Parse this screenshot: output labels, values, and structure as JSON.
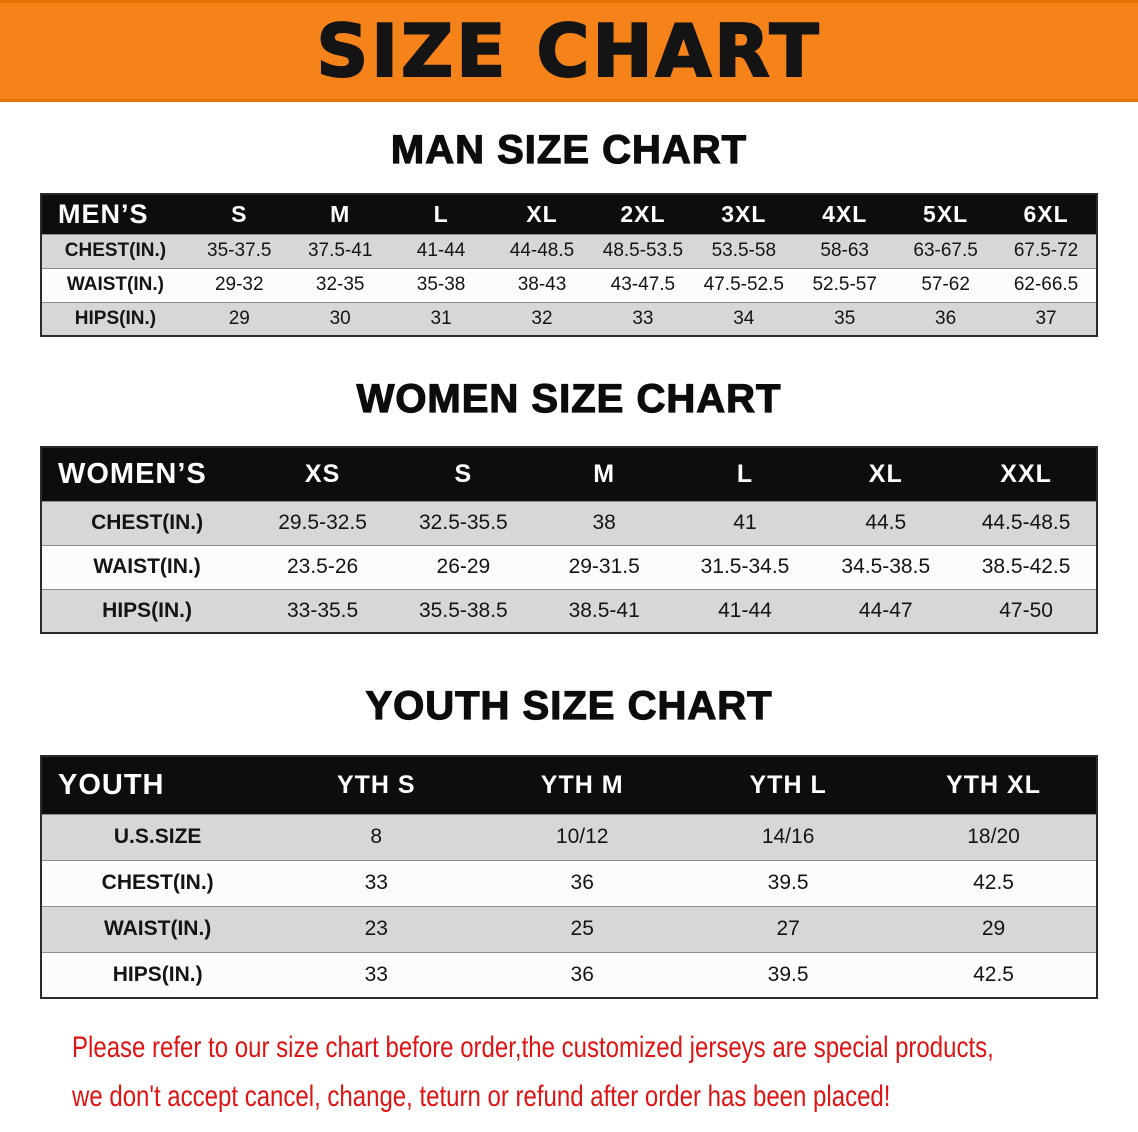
{
  "banner": {
    "title": "SIZE CHART"
  },
  "colors": {
    "banner_bg": "#f6831a",
    "title_text": "#141414",
    "table_header_bg": "#0d0d0d",
    "table_header_text": "#ffffff",
    "row_stripe": "#d7d7d7",
    "disclaimer_text": "#df1414"
  },
  "sections": [
    {
      "id": "men",
      "heading": "MAN SIZE CHART",
      "table": {
        "header": [
          "MEN’S",
          "S",
          "M",
          "L",
          "XL",
          "2XL",
          "3XL",
          "4XL",
          "5XL",
          "6XL"
        ],
        "rows": [
          {
            "label": "CHEST(IN.)",
            "values": [
              "35-37.5",
              "37.5-41",
              "41-44",
              "44-48.5",
              "48.5-53.5",
              "53.5-58",
              "58-63",
              "63-67.5",
              "67.5-72"
            ]
          },
          {
            "label": "WAIST(IN.)",
            "values": [
              "29-32",
              "32-35",
              "35-38",
              "38-43",
              "43-47.5",
              "47.5-52.5",
              "52.5-57",
              "57-62",
              "62-66.5"
            ]
          },
          {
            "label": "HIPS(IN.)",
            "values": [
              "29",
              "30",
              "31",
              "32",
              "33",
              "34",
              "35",
              "36",
              "37"
            ]
          }
        ]
      }
    },
    {
      "id": "women",
      "heading": "WOMEN SIZE CHART",
      "table": {
        "header": [
          "WOMEN’S",
          "XS",
          "S",
          "M",
          "L",
          "XL",
          "XXL"
        ],
        "rows": [
          {
            "label": "CHEST(IN.)",
            "values": [
              "29.5-32.5",
              "32.5-35.5",
              "38",
              "41",
              "44.5",
              "44.5-48.5"
            ]
          },
          {
            "label": "WAIST(IN.)",
            "values": [
              "23.5-26",
              "26-29",
              "29-31.5",
              "31.5-34.5",
              "34.5-38.5",
              "38.5-42.5"
            ]
          },
          {
            "label": "HIPS(IN.)",
            "values": [
              "33-35.5",
              "35.5-38.5",
              "38.5-41",
              "41-44",
              "44-47",
              "47-50"
            ]
          }
        ]
      }
    },
    {
      "id": "youth",
      "heading": "YOUTH SIZE CHART",
      "table": {
        "header": [
          "YOUTH",
          "YTH S",
          "YTH M",
          "YTH L",
          "YTH XL"
        ],
        "rows": [
          {
            "label": "U.S.SIZE",
            "values": [
              "8",
              "10/12",
              "14/16",
              "18/20"
            ]
          },
          {
            "label": "CHEST(IN.)",
            "values": [
              "33",
              "36",
              "39.5",
              "42.5"
            ]
          },
          {
            "label": "WAIST(IN.)",
            "values": [
              "23",
              "25",
              "27",
              "29"
            ]
          },
          {
            "label": "HIPS(IN.)",
            "values": [
              "33",
              "36",
              "39.5",
              "42.5"
            ]
          }
        ]
      }
    }
  ],
  "footer": {
    "line1": "Please refer to our size chart before order,the customized jerseys are special products,",
    "line2": "we don't accept cancel, change, teturn or refund after order has been placed!"
  }
}
